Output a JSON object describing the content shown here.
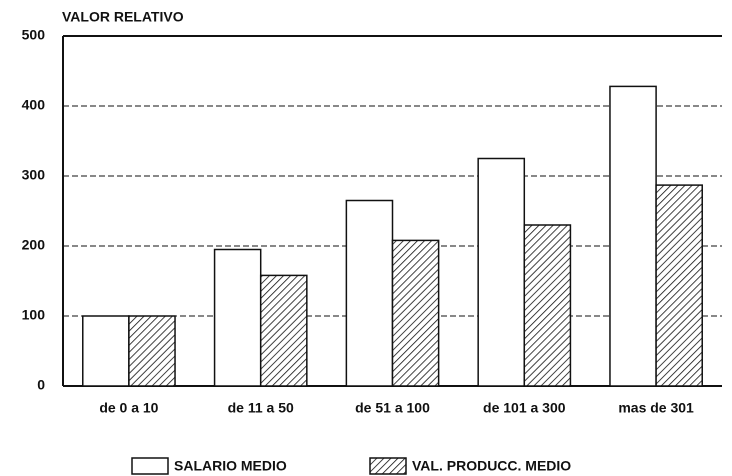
{
  "chart_data": {
    "type": "bar",
    "y_label": "VALOR RELATIVO",
    "categories": [
      "de 0 a 10",
      "de 11 a 50",
      "de 51 a 100",
      "de 101 a 300",
      "mas de 301"
    ],
    "series": [
      {
        "name": "SALARIO MEDIO",
        "color": "#ffffff",
        "hatch": false,
        "values": [
          100,
          195,
          265,
          325,
          428
        ]
      },
      {
        "name": "VAL. PRODUCC. MEDIO",
        "color": "#000000",
        "hatch": true,
        "values": [
          100,
          158,
          208,
          230,
          287
        ]
      }
    ],
    "ylim": [
      0,
      500
    ],
    "yticks": [
      0,
      100,
      200,
      300,
      400,
      500
    ],
    "grid": true,
    "legend": "bottom"
  }
}
